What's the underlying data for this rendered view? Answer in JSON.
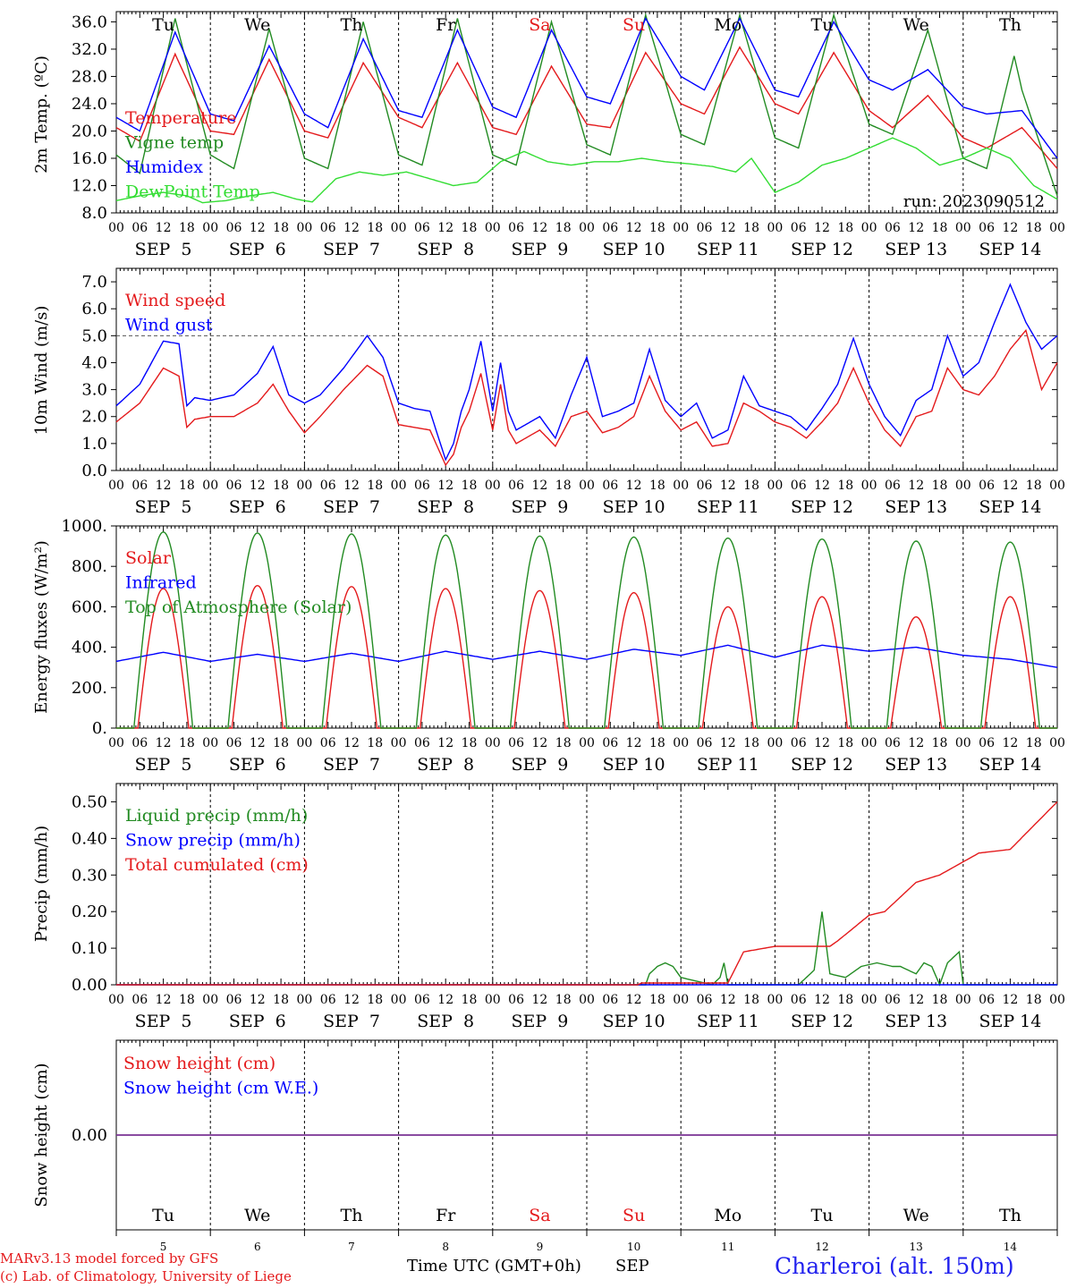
{
  "days": [
    "Tu",
    "We",
    "Th",
    "Fr",
    "Sa",
    "Su",
    "Mo",
    "Tu",
    "We",
    "Th"
  ],
  "day_colors": [
    "#000000",
    "#000000",
    "#000000",
    "#000000",
    "#e41a1c",
    "#e41a1c",
    "#000000",
    "#000000",
    "#000000",
    "#000000"
  ],
  "dates": [
    "SEP  5",
    "SEP  6",
    "SEP  7",
    "SEP  8",
    "SEP  9",
    "SEP 10",
    "SEP 11",
    "SEP 12",
    "SEP 13",
    "SEP 14"
  ],
  "day_numbers": [
    "5",
    "6",
    "7",
    "8",
    "9",
    "10",
    "11",
    "12",
    "13",
    "14"
  ],
  "hour_labels": [
    "00",
    "06",
    "12",
    "18"
  ],
  "run_label": "run: 2023090512",
  "xlabel": "Time UTC (GMT+0h)",
  "month": "SEP",
  "footer": {
    "model": "MARv3.13 model forced by GFS",
    "credit": "(c) Lab. of Climatology, University of Liege",
    "station": "Charleroi (alt. 150m)"
  },
  "chart_data": [
    {
      "type": "line",
      "ylabel": "2m Temp. (ºC)",
      "ylim": [
        8,
        37.5
      ],
      "yticks": [
        8,
        12,
        16,
        20,
        24,
        28,
        32,
        36
      ],
      "ytick_labels": [
        "8.0",
        "12.0",
        "16.0",
        "20.0",
        "24.0",
        "28.0",
        "32.0",
        "36.0"
      ],
      "x_unit": "hours since Sep 5 00 UTC",
      "xlim": [
        0,
        240
      ],
      "series": [
        {
          "name": "Temperature",
          "color": "#e41a1c",
          "x": [
            0,
            6,
            15,
            24,
            30,
            39,
            48,
            54,
            63,
            72,
            78,
            87,
            96,
            102,
            111,
            120,
            126,
            135,
            144,
            150,
            159,
            168,
            174,
            183,
            192,
            198,
            207,
            216,
            222,
            231,
            240
          ],
          "y": [
            20.5,
            18.5,
            31.3,
            20,
            19.5,
            30.5,
            20,
            19,
            30,
            22,
            20.5,
            30,
            20.5,
            19.5,
            29.5,
            21,
            20.5,
            31.5,
            24,
            22.5,
            32.3,
            24,
            22.5,
            31.5,
            23,
            20.5,
            25.2,
            19,
            17.5,
            20.5,
            14.5
          ]
        },
        {
          "name": "Vigne temp",
          "color": "#228b22",
          "x": [
            0,
            6,
            15,
            24,
            30,
            39,
            48,
            54,
            63,
            72,
            78,
            87,
            96,
            102,
            111,
            120,
            126,
            135,
            144,
            150,
            159,
            168,
            174,
            183,
            192,
            198,
            207,
            216,
            222,
            229,
            231,
            240
          ],
          "y": [
            16.5,
            13.8,
            36.5,
            16.5,
            14.5,
            35,
            16,
            14.5,
            36,
            16.5,
            15,
            36.5,
            16.5,
            15,
            36,
            18,
            16.5,
            37,
            19.5,
            18,
            37,
            19,
            17.5,
            37,
            21,
            19.5,
            34.8,
            16,
            14.5,
            31,
            26,
            10.5
          ]
        },
        {
          "name": "Humidex",
          "color": "#0000ff",
          "x": [
            0,
            6,
            15,
            24,
            30,
            39,
            48,
            54,
            63,
            72,
            78,
            87,
            96,
            102,
            111,
            120,
            126,
            135,
            144,
            150,
            159,
            168,
            174,
            183,
            192,
            198,
            207,
            216,
            222,
            231,
            240
          ],
          "y": [
            22,
            20,
            34.5,
            22.5,
            21.5,
            32.5,
            22.5,
            20.5,
            33.5,
            23,
            22,
            34.8,
            23.5,
            22,
            34.8,
            25,
            24,
            36.5,
            28,
            26,
            36.5,
            26,
            25,
            36,
            27.5,
            26,
            29,
            23.5,
            22.5,
            23,
            16
          ]
        },
        {
          "name": "DewPoint Temp",
          "color": "#33dd33",
          "x": [
            0,
            6,
            12,
            18,
            22,
            28,
            34,
            40,
            46,
            50,
            56,
            62,
            68,
            74,
            80,
            86,
            92,
            98,
            104,
            110,
            116,
            122,
            128,
            134,
            140,
            146,
            152,
            158,
            162,
            168,
            174,
            180,
            186,
            192,
            198,
            204,
            210,
            216,
            222,
            228,
            234,
            240
          ],
          "y": [
            9.8,
            10.5,
            11,
            10.5,
            9.5,
            9.8,
            10.5,
            11,
            10,
            9.6,
            13,
            14,
            13.5,
            14,
            13,
            12,
            12.5,
            15.5,
            17,
            15.5,
            15,
            15.5,
            15.5,
            16,
            15.5,
            15.2,
            14.8,
            14,
            16,
            11,
            12.5,
            15,
            16,
            17.5,
            19,
            17.5,
            15,
            16,
            17.5,
            16,
            12,
            10
          ]
        }
      ]
    },
    {
      "type": "line",
      "ylabel": "10m Wind (m/s)",
      "ylim": [
        0,
        7.5
      ],
      "yticks": [
        0,
        1,
        2,
        3,
        4,
        5,
        6,
        7
      ],
      "ytick_labels": [
        "0.0",
        "1.0",
        "2.0",
        "3.0",
        "4.0",
        "5.0",
        "6.0",
        "7.0"
      ],
      "reference_line": 5,
      "x_unit": "hours since Sep 5 00 UTC",
      "xlim": [
        0,
        240
      ],
      "series": [
        {
          "name": "Wind speed",
          "color": "#e41a1c",
          "x": [
            0,
            6,
            12,
            16,
            18,
            20,
            24,
            30,
            36,
            40,
            44,
            48,
            52,
            58,
            64,
            68,
            72,
            76,
            80,
            84,
            86,
            88,
            90,
            93,
            96,
            98,
            100,
            102,
            108,
            112,
            116,
            120,
            124,
            128,
            132,
            136,
            140,
            144,
            148,
            152,
            156,
            160,
            164,
            168,
            172,
            176,
            180,
            184,
            188,
            192,
            196,
            200,
            204,
            208,
            212,
            216,
            220,
            224,
            228,
            232,
            236,
            240
          ],
          "y": [
            1.8,
            2.5,
            3.8,
            3.5,
            1.6,
            1.9,
            2,
            2,
            2.5,
            3.2,
            2.2,
            1.4,
            2,
            3,
            3.9,
            3.5,
            1.7,
            1.6,
            1.5,
            0.2,
            0.6,
            1.6,
            2.2,
            3.6,
            1.5,
            3.2,
            1.5,
            1,
            1.5,
            0.9,
            2,
            2.2,
            1.4,
            1.6,
            2,
            3.5,
            2.2,
            1.5,
            1.8,
            0.9,
            1,
            2.5,
            2.2,
            1.8,
            1.6,
            1.2,
            1.8,
            2.5,
            3.8,
            2.5,
            1.5,
            0.9,
            2,
            2.2,
            3.8,
            3,
            2.8,
            3.5,
            4.5,
            5.2,
            3,
            4
          ]
        },
        {
          "name": "Wind gust",
          "color": "#0000ff",
          "x": [
            0,
            6,
            12,
            16,
            18,
            20,
            24,
            30,
            36,
            40,
            44,
            48,
            52,
            58,
            64,
            68,
            72,
            76,
            80,
            84,
            86,
            88,
            90,
            93,
            96,
            98,
            100,
            102,
            108,
            112,
            116,
            120,
            124,
            128,
            132,
            136,
            140,
            144,
            148,
            152,
            156,
            160,
            164,
            168,
            172,
            176,
            180,
            184,
            188,
            192,
            196,
            200,
            204,
            208,
            212,
            216,
            220,
            224,
            228,
            232,
            236,
            240
          ],
          "y": [
            2.4,
            3.2,
            4.8,
            4.7,
            2.4,
            2.7,
            2.6,
            2.8,
            3.6,
            4.6,
            2.8,
            2.5,
            2.8,
            3.8,
            5,
            4.2,
            2.5,
            2.3,
            2.2,
            0.4,
            1,
            2.2,
            3,
            4.8,
            2.2,
            4,
            2.2,
            1.5,
            2,
            1.2,
            2.8,
            4.2,
            2,
            2.2,
            2.5,
            4.5,
            2.6,
            2,
            2.5,
            1.2,
            1.5,
            3.5,
            2.4,
            2.2,
            2,
            1.5,
            2.3,
            3.2,
            4.9,
            3.2,
            2,
            1.3,
            2.6,
            3,
            5,
            3.5,
            4,
            5.5,
            6.9,
            5.5,
            4.5,
            5
          ]
        }
      ]
    },
    {
      "type": "line",
      "ylabel": "Energy fluxes (W/m²)",
      "ylim": [
        0,
        1000
      ],
      "yticks": [
        0,
        200,
        400,
        600,
        800,
        1000
      ],
      "ytick_labels": [
        "0.",
        "200.",
        "400.",
        "600.",
        "800.",
        "1000."
      ],
      "x_unit": "hours since Sep 5 00 UTC",
      "xlim": [
        0,
        240
      ],
      "series": [
        {
          "name": "Solar",
          "color": "#e41a1c",
          "daily_peak": [
            690,
            705,
            700,
            690,
            680,
            670,
            600,
            650,
            550,
            650
          ],
          "daylight_hours": [
            5.5,
            18.5
          ]
        },
        {
          "name": "Infrared",
          "color": "#0000ff",
          "x": [
            0,
            12,
            24,
            36,
            48,
            60,
            72,
            84,
            96,
            108,
            120,
            132,
            144,
            156,
            168,
            180,
            192,
            204,
            216,
            228,
            240
          ],
          "y": [
            330,
            375,
            330,
            365,
            330,
            370,
            330,
            380,
            340,
            380,
            340,
            390,
            360,
            410,
            350,
            410,
            380,
            400,
            360,
            340,
            300
          ]
        },
        {
          "name": "Top of Atmosphere (Solar)",
          "color": "#228b22",
          "daily_peak": [
            970,
            965,
            960,
            955,
            950,
            945,
            940,
            935,
            925,
            920
          ],
          "daylight_hours": [
            4.5,
            19.5
          ]
        }
      ]
    },
    {
      "type": "line",
      "ylabel": "Precip (mm/h)",
      "ylim": [
        0,
        0.55
      ],
      "yticks": [
        0,
        0.1,
        0.2,
        0.3,
        0.4,
        0.5
      ],
      "ytick_labels": [
        "0.00",
        "0.10",
        "0.20",
        "0.30",
        "0.40",
        "0.50"
      ],
      "x_unit": "hours since Sep 5 00 UTC",
      "xlim": [
        0,
        240
      ],
      "series": [
        {
          "name": "Liquid precip (mm/h)",
          "color": "#228b22",
          "x": [
            0,
            135,
            136,
            138,
            140,
            142,
            144,
            152,
            154,
            155,
            156,
            158,
            160,
            164,
            170,
            174,
            176,
            178,
            180,
            182,
            186,
            190,
            194,
            198,
            200,
            202,
            204,
            206,
            208,
            210,
            212,
            215,
            216,
            240
          ],
          "y": [
            0,
            0,
            0.03,
            0.05,
            0.06,
            0.05,
            0.02,
            0,
            0.02,
            0.06,
            0,
            0,
            0,
            0,
            0,
            0,
            0.02,
            0.04,
            0.2,
            0.03,
            0.02,
            0.05,
            0.06,
            0.05,
            0.05,
            0.04,
            0.03,
            0.06,
            0.05,
            0,
            0.06,
            0.09,
            0,
            0
          ]
        },
        {
          "name": "Snow precip (mm/h)",
          "color": "#0000ff",
          "x": [
            0,
            240
          ],
          "y": [
            0,
            0
          ]
        },
        {
          "name": "Total cumulated (cm)",
          "color": "#e41a1c",
          "x": [
            0,
            133,
            134,
            156,
            160,
            168,
            172,
            182,
            184,
            192,
            196,
            204,
            210,
            220,
            228,
            240
          ],
          "y": [
            0,
            0,
            0.005,
            0.005,
            0.09,
            0.105,
            0.105,
            0.105,
            0.12,
            0.19,
            0.2,
            0.28,
            0.3,
            0.36,
            0.37,
            0.5
          ]
        }
      ]
    },
    {
      "type": "line",
      "ylabel": "Snow height (cm)",
      "ytick_labels": [
        "0.00"
      ],
      "x_unit": "hours since Sep 5 00 UTC",
      "xlim": [
        0,
        240
      ],
      "series": [
        {
          "name": "Snow height (cm)",
          "color": "#e41a1c",
          "x": [
            0,
            240
          ],
          "y": [
            0,
            0
          ]
        },
        {
          "name": "Snow height (cm W.E.)",
          "color": "#0000ff",
          "x": [
            0,
            240
          ],
          "y": [
            0,
            0
          ]
        }
      ]
    }
  ]
}
